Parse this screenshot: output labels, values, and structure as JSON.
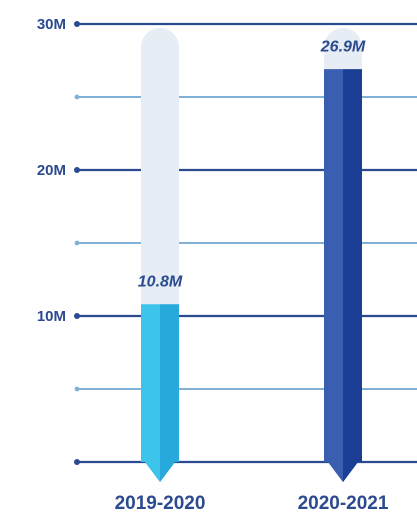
{
  "chart_data": {
    "type": "bar",
    "categories": [
      "2019-2020",
      "2020-2021"
    ],
    "values": [
      10.8,
      26.9
    ],
    "value_labels": [
      "10.8M",
      "26.9M"
    ],
    "ylim": [
      0,
      30
    ],
    "yticks": [
      {
        "value": 0,
        "label": ""
      },
      {
        "value": 5,
        "label": ""
      },
      {
        "value": 10,
        "label": "10M"
      },
      {
        "value": 15,
        "label": ""
      },
      {
        "value": 20,
        "label": "20M"
      },
      {
        "value": 25,
        "label": ""
      },
      {
        "value": 30,
        "label": "30M"
      }
    ],
    "grid": true,
    "colors": {
      "major_grid": "#2b4a8f",
      "minor_grid": "#7fb2d6",
      "tick_text": "#2b4a8f",
      "track": "#e6edf4",
      "bars": [
        {
          "light": "#3cc4ea",
          "dark": "#28a9dc"
        },
        {
          "light": "#3a5fb0",
          "dark": "#1c3f96"
        }
      ],
      "value_label": "#2b4a8f"
    }
  }
}
